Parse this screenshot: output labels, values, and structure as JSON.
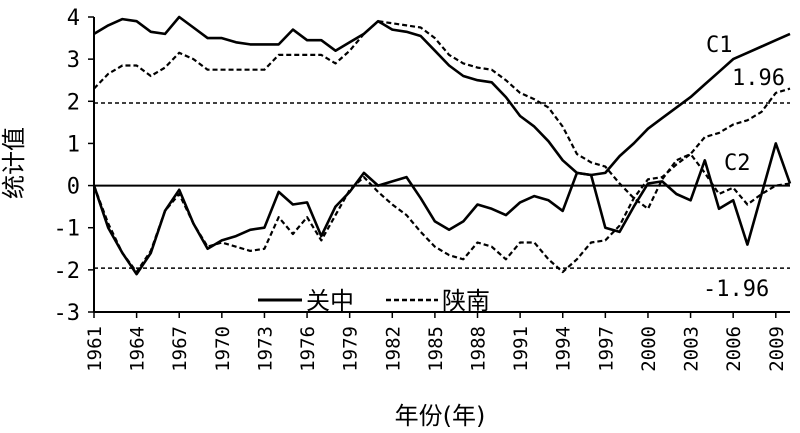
{
  "chart_data": {
    "type": "line",
    "xlabel": "年份(年)",
    "ylabel": "统计值",
    "xlim": [
      1961,
      2010
    ],
    "ylim": [
      -3,
      4
    ],
    "x_ticks": [
      "1961",
      "1964",
      "1967",
      "1970",
      "1973",
      "1976",
      "1979",
      "1982",
      "1985",
      "1988",
      "1991",
      "1994",
      "1997",
      "2000",
      "2003",
      "2006",
      "2009"
    ],
    "y_ticks": [
      "4",
      "3",
      "2",
      "1",
      "0",
      "-1",
      "-2",
      "-3"
    ],
    "reference_lines": [
      {
        "value": 1.96,
        "label": "1.96",
        "style": "dashed"
      },
      {
        "value": -1.96,
        "label": "-1.96",
        "style": "dashed"
      },
      {
        "value": 0,
        "style": "solid"
      }
    ],
    "curve_labels": {
      "c1": "C1",
      "c2": "C2"
    },
    "legend": {
      "position": "bottom-left",
      "entries": [
        "关中",
        "陕南"
      ]
    },
    "x": [
      1961,
      1962,
      1963,
      1964,
      1965,
      1966,
      1967,
      1968,
      1969,
      1970,
      1971,
      1972,
      1973,
      1974,
      1975,
      1976,
      1977,
      1978,
      1979,
      1980,
      1981,
      1982,
      1983,
      1984,
      1985,
      1986,
      1987,
      1988,
      1989,
      1990,
      1991,
      1992,
      1993,
      1994,
      1995,
      1996,
      1997,
      1998,
      1999,
      2000,
      2001,
      2002,
      2003,
      2004,
      2005,
      2006,
      2007,
      2008,
      2009,
      2010
    ],
    "series": [
      {
        "name": "关中",
        "style": "solid",
        "c1": [
          3.6,
          3.8,
          3.95,
          3.9,
          3.65,
          3.6,
          4.0,
          3.75,
          3.5,
          3.5,
          3.4,
          3.35,
          3.35,
          3.35,
          3.7,
          3.45,
          3.45,
          3.2,
          3.4,
          3.6,
          3.9,
          3.7,
          3.65,
          3.55,
          3.2,
          2.85,
          2.6,
          2.5,
          2.45,
          2.1,
          1.65,
          1.4,
          1.05,
          0.6,
          0.3,
          0.25,
          0.3,
          0.7,
          1.0,
          1.35,
          1.6,
          1.85,
          2.1,
          2.4,
          2.7,
          3.0,
          3.15,
          3.3,
          3.45,
          3.6
        ],
        "c2": [
          0,
          -1.0,
          -1.6,
          -2.1,
          -1.6,
          -0.6,
          -0.1,
          -0.9,
          -1.5,
          -1.3,
          -1.2,
          -1.05,
          -1.0,
          -0.15,
          -0.45,
          -0.4,
          -1.2,
          -0.5,
          -0.15,
          0.3,
          0.0,
          0.1,
          0.2,
          -0.3,
          -0.85,
          -1.05,
          -0.85,
          -0.45,
          -0.55,
          -0.7,
          -0.4,
          -0.25,
          -0.35,
          -0.6,
          0.3,
          0.25,
          -1.0,
          -1.1,
          -0.5,
          0.05,
          0.1,
          -0.2,
          -0.35,
          0.6,
          -0.55,
          -0.35,
          -1.4,
          -0.2,
          1.0,
          0.05
        ]
      },
      {
        "name": "陕南",
        "style": "dashed",
        "c1": [
          2.3,
          2.65,
          2.85,
          2.85,
          2.6,
          2.8,
          3.15,
          3.0,
          2.75,
          2.75,
          2.75,
          2.75,
          2.75,
          3.1,
          3.1,
          3.1,
          3.1,
          2.9,
          3.2,
          3.6,
          3.9,
          3.85,
          3.8,
          3.75,
          3.5,
          3.1,
          2.9,
          2.8,
          2.75,
          2.5,
          2.2,
          2.05,
          1.85,
          1.4,
          0.75,
          0.55,
          0.45,
          0.05,
          -0.3,
          -0.55,
          0.15,
          0.6,
          0.75,
          1.15,
          1.25,
          1.45,
          1.55,
          1.75,
          2.2,
          2.3
        ],
        "c2": [
          0,
          -0.9,
          -1.6,
          -2.05,
          -1.55,
          -0.6,
          -0.2,
          -0.9,
          -1.45,
          -1.35,
          -1.45,
          -1.55,
          -1.5,
          -0.75,
          -1.15,
          -0.75,
          -1.3,
          -0.7,
          -0.1,
          0.2,
          -0.15,
          -0.45,
          -0.7,
          -1.1,
          -1.45,
          -1.65,
          -1.75,
          -1.35,
          -1.45,
          -1.75,
          -1.35,
          -1.35,
          -1.75,
          -2.05,
          -1.75,
          -1.35,
          -1.3,
          -0.95,
          -0.3,
          0.15,
          0.2,
          0.5,
          0.75,
          0.3,
          -0.2,
          -0.05,
          -0.45,
          -0.2,
          0.0,
          0.05
        ]
      }
    ]
  }
}
